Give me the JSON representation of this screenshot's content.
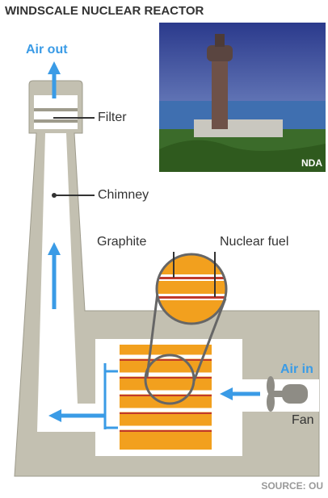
{
  "header": {
    "title": "WINDSCALE NUCLEAR REACTOR"
  },
  "photo": {
    "credit": "NDA"
  },
  "labels": {
    "air_out": "Air out",
    "filter": "Filter",
    "chimney": "Chimney",
    "graphite": "Graphite",
    "nuclear_fuel": "Nuclear fuel",
    "air_in": "Air in",
    "fan": "Fan"
  },
  "footer": {
    "source": "SOURCE: OU"
  }
}
